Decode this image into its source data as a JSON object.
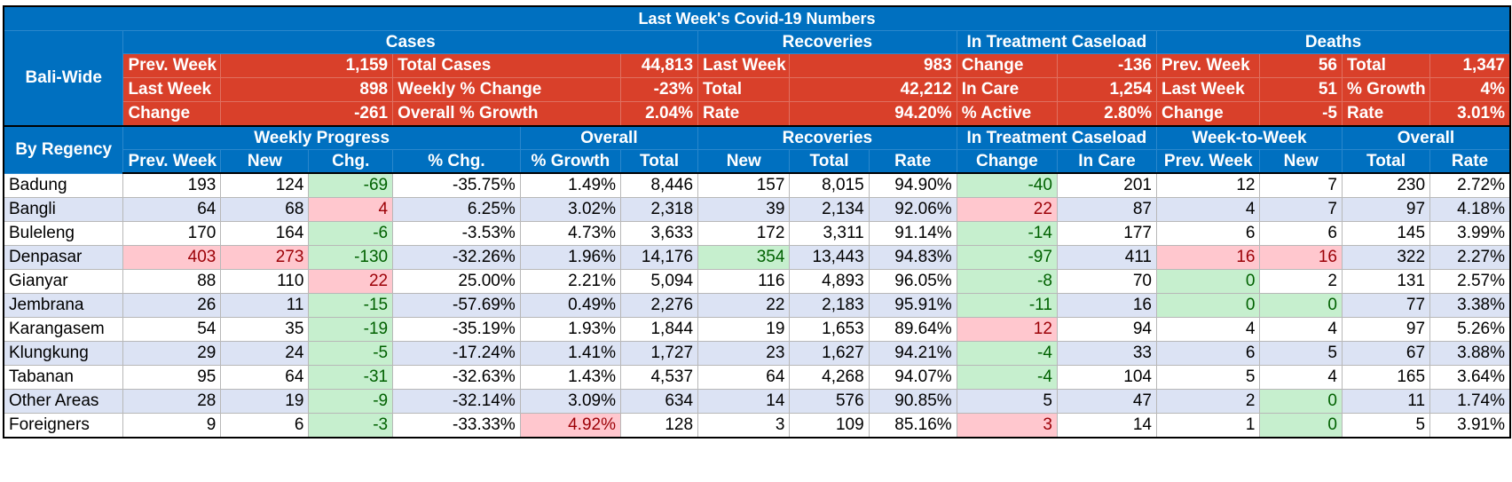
{
  "title": "Last Week's Covid-19 Numbers",
  "bali_wide": {
    "label": "Bali-Wide",
    "groups": [
      "Cases",
      "Recoveries",
      "In Treatment Caseload",
      "Deaths"
    ],
    "rows": [
      [
        "Prev. Week",
        "1,159",
        "Total Cases",
        "44,813",
        "Last Week",
        "983",
        "Change",
        "-136",
        "Prev. Week",
        "56",
        "Total",
        "1,347"
      ],
      [
        "Last Week",
        "898",
        "Weekly % Change",
        "-23%",
        "Total",
        "42,212",
        "In Care",
        "1,254",
        "Last Week",
        "51",
        "% Growth",
        "4%"
      ],
      [
        "Change",
        "-261",
        "Overall % Growth",
        "2.04%",
        "Rate",
        "94.20%",
        "% Active",
        "2.80%",
        "Change",
        "-5",
        "Rate",
        "3.01%"
      ]
    ]
  },
  "by_regency": {
    "label": "By Regency",
    "groups": [
      "Weekly Progress",
      "Overall",
      "Recoveries",
      "In Treatment Caseload",
      "Week-to-Week",
      "Overall"
    ],
    "columns": [
      "Prev. Week",
      "New",
      "Chg.",
      "% Chg.",
      "% Growth",
      "Total",
      "New",
      "Total",
      "Rate",
      "Change",
      "In Care",
      "Prev. Week",
      "New",
      "Total",
      "Rate"
    ],
    "rows": [
      {
        "name": "Badung",
        "v": [
          "193",
          "124",
          "-69",
          "-35.75%",
          "1.49%",
          "8,446",
          "157",
          "8,015",
          "94.90%",
          "-40",
          "201",
          "12",
          "7",
          "230",
          "2.72%"
        ],
        "hl": {
          "2": "g",
          "9": "g"
        }
      },
      {
        "name": "Bangli",
        "v": [
          "64",
          "68",
          "4",
          "6.25%",
          "3.02%",
          "2,318",
          "39",
          "2,134",
          "92.06%",
          "22",
          "87",
          "4",
          "7",
          "97",
          "4.18%"
        ],
        "hl": {
          "2": "r",
          "9": "r"
        }
      },
      {
        "name": "Buleleng",
        "v": [
          "170",
          "164",
          "-6",
          "-3.53%",
          "4.73%",
          "3,633",
          "172",
          "3,311",
          "91.14%",
          "-14",
          "177",
          "6",
          "6",
          "145",
          "3.99%"
        ],
        "hl": {
          "2": "g",
          "9": "g"
        }
      },
      {
        "name": "Denpasar",
        "v": [
          "403",
          "273",
          "-130",
          "-32.26%",
          "1.96%",
          "14,176",
          "354",
          "13,443",
          "94.83%",
          "-97",
          "411",
          "16",
          "16",
          "322",
          "2.27%"
        ],
        "hl": {
          "0": "r",
          "1": "r",
          "2": "g",
          "6": "g",
          "9": "g",
          "11": "r",
          "12": "r"
        }
      },
      {
        "name": "Gianyar",
        "v": [
          "88",
          "110",
          "22",
          "25.00%",
          "2.21%",
          "5,094",
          "116",
          "4,893",
          "96.05%",
          "-8",
          "70",
          "0",
          "2",
          "131",
          "2.57%"
        ],
        "hl": {
          "2": "r",
          "9": "g",
          "11": "g"
        }
      },
      {
        "name": "Jembrana",
        "v": [
          "26",
          "11",
          "-15",
          "-57.69%",
          "0.49%",
          "2,276",
          "22",
          "2,183",
          "95.91%",
          "-11",
          "16",
          "0",
          "0",
          "77",
          "3.38%"
        ],
        "hl": {
          "2": "g",
          "9": "g",
          "11": "g",
          "12": "g"
        }
      },
      {
        "name": "Karangasem",
        "v": [
          "54",
          "35",
          "-19",
          "-35.19%",
          "1.93%",
          "1,844",
          "19",
          "1,653",
          "89.64%",
          "12",
          "94",
          "4",
          "4",
          "97",
          "5.26%"
        ],
        "hl": {
          "2": "g",
          "9": "r"
        }
      },
      {
        "name": "Klungkung",
        "v": [
          "29",
          "24",
          "-5",
          "-17.24%",
          "1.41%",
          "1,727",
          "23",
          "1,627",
          "94.21%",
          "-4",
          "33",
          "6",
          "5",
          "67",
          "3.88%"
        ],
        "hl": {
          "2": "g",
          "9": "g"
        }
      },
      {
        "name": "Tabanan",
        "v": [
          "95",
          "64",
          "-31",
          "-32.63%",
          "1.43%",
          "4,537",
          "64",
          "4,268",
          "94.07%",
          "-4",
          "104",
          "5",
          "4",
          "165",
          "3.64%"
        ],
        "hl": {
          "2": "g",
          "9": "g"
        }
      },
      {
        "name": "Other Areas",
        "v": [
          "28",
          "19",
          "-9",
          "-32.14%",
          "3.09%",
          "634",
          "14",
          "576",
          "90.85%",
          "5",
          "47",
          "2",
          "0",
          "11",
          "1.74%"
        ],
        "hl": {
          "2": "g",
          "12": "g"
        }
      },
      {
        "name": "Foreigners",
        "v": [
          "9",
          "6",
          "-3",
          "-33.33%",
          "4.92%",
          "128",
          "3",
          "109",
          "85.16%",
          "3",
          "14",
          "1",
          "0",
          "5",
          "3.91%"
        ],
        "hl": {
          "2": "g",
          "4": "r",
          "9": "r",
          "12": "g"
        }
      }
    ]
  }
}
